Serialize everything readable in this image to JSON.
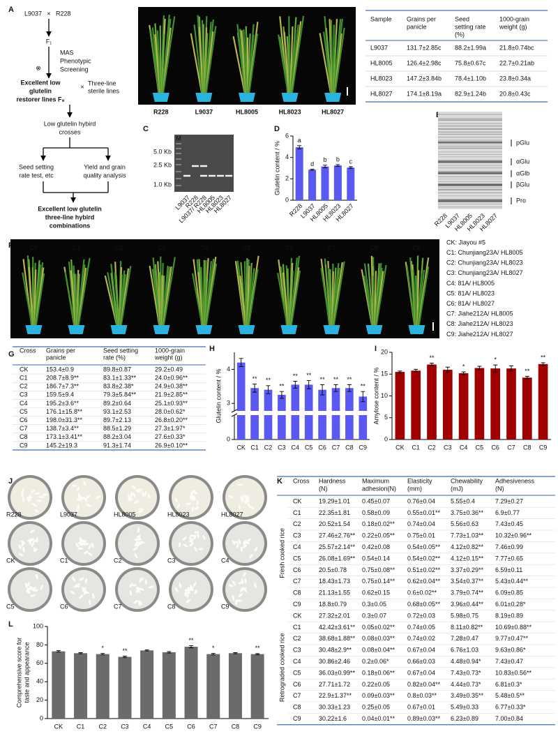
{
  "panel_labels": [
    "A",
    "B",
    "C",
    "D",
    "E",
    "F",
    "G",
    "H",
    "I",
    "J",
    "K",
    "L"
  ],
  "panel_a": {
    "parent_1": "L9037",
    "cross_symbol": "×",
    "parent_2": "R228",
    "f1": "F₁",
    "selection": [
      "MAS",
      "Phenotypic",
      "Screening"
    ],
    "selfing_symbol": "⊗",
    "restorer": [
      "Excellent low",
      "glutelin",
      "restorer lines F₉"
    ],
    "cross_symbol_2": "×",
    "sterile": [
      "Three-line",
      "sterile lines"
    ],
    "crosses": [
      "Low glutelin hybird",
      "crosses"
    ],
    "test": [
      "Seed setting",
      "rate test, etc"
    ],
    "analysis": [
      "Yield and grain",
      "quality analysis"
    ],
    "result": [
      "Excellent low glutelin",
      "three-line hybird",
      "combinations"
    ]
  },
  "panel_b": {
    "plants": [
      "R228",
      "L9037",
      "HL8005",
      "HL8023",
      "HL8027"
    ],
    "table": {
      "header": [
        [
          "Sample"
        ],
        [
          "Grains per",
          "panicle"
        ],
        [
          "Seed",
          "setting rate",
          "(%)"
        ],
        [
          "1000-grain",
          "weight (g)"
        ]
      ],
      "rows": [
        [
          "L9037",
          "131.7±2.85c",
          "88.2±1.99a",
          "21.8±0.74bc"
        ],
        [
          "HL8005",
          "126.4±2.98c",
          "75.8±0.67c",
          "22.7±0.21ab"
        ],
        [
          "HL8023",
          "147.2±3.84b",
          "78.4±1.10b",
          "23.8±0.34a"
        ],
        [
          "HL8027",
          "174.1±8.19a",
          "82.9±1.24b",
          "20.8±0.43c"
        ]
      ]
    }
  },
  "panel_c": {
    "marker": "M",
    "sizes": [
      "5.0 Kb",
      "2.5 Kb",
      "1.0 Kb"
    ],
    "lanes": [
      "L9037",
      "R228",
      "L9037/ R228",
      "HL8005",
      "HL8023",
      "HL8027"
    ]
  },
  "panel_e": {
    "bands": [
      "pGlu",
      "αGlu",
      "αGlb",
      "βGlu",
      "Pro"
    ],
    "lanes": [
      "R228",
      "L9037",
      "HL8005",
      "HL8023",
      "HL8027"
    ]
  },
  "panel_f": {
    "plants": [
      "CK",
      "C1",
      "C2",
      "C3",
      "C4",
      "C5",
      "C6",
      "C7",
      "C8",
      "C9"
    ],
    "key": [
      "CK: Jiayou #5",
      "C1: Chunjiang23A/ HL8005",
      "C2: Chunjiang23A/ HL8023",
      "C3: Chunjiang23A/ HL8027",
      "C4: 81A/ HL8005",
      "C5: 81A/ HL8023",
      "C6: 81A/ HL8027",
      "C7: Jiahe212A/ HL8005",
      "C8: Jiahe212A/ HL8023",
      "C9: Jiahe212A/ HL8027"
    ]
  },
  "panel_g": {
    "header": [
      [
        "Cross"
      ],
      [
        "Grains per",
        "panicle"
      ],
      [
        "Seed setting",
        "rate (%)"
      ],
      [
        "1000-grain",
        "weight (g)"
      ]
    ],
    "rows": [
      [
        "CK",
        "153.4±0.9",
        "89.8±0.87",
        "29.2±0.49"
      ],
      [
        "C1",
        "208.7±8.9**",
        "83.1±1.33**",
        "24.0±0.96**"
      ],
      [
        "C2",
        "186.7±7.3**",
        "83.8±2.38*",
        "24.9±0.38**"
      ],
      [
        "C3",
        "159.5±9.4",
        "79.3±5.84**",
        "21.9±2.85**"
      ],
      [
        "C4",
        "195.2±3.6**",
        "89.2±0.64",
        "25.1±0.93**"
      ],
      [
        "C5",
        "176.1±15.8**",
        "93.1±2.53",
        "28.0±0.62*"
      ],
      [
        "C6",
        "198.0±31.3**",
        "89.7±2.13",
        "26.8±0.20**"
      ],
      [
        "C7",
        "138.7±3.4**",
        "88.5±1.29",
        "27.3±1.97*"
      ],
      [
        "C8",
        "173.1±3.41**",
        "88.2±3.04",
        "27.6±0.33*"
      ],
      [
        "C9",
        "145.2±19.3",
        "91.3±1.74",
        "26.9±0.10**"
      ]
    ]
  },
  "panel_j": {
    "dishes": [
      "R228",
      "L9037",
      "HL8005",
      "HL8023",
      "HL8027",
      "CK",
      "C1",
      "C2",
      "C3",
      "C4",
      "C5",
      "C6",
      "C7",
      "C8",
      "C9"
    ]
  },
  "panel_k": {
    "header": [
      [
        "Cross"
      ],
      [
        "Hardness",
        "(N)"
      ],
      [
        "Maximum",
        "adhesion(N)"
      ],
      [
        "Elasticity",
        "(mm)"
      ],
      [
        "Chewability",
        "(mJ)"
      ],
      [
        "Adhesiveness",
        "(N)"
      ]
    ],
    "groups": [
      {
        "name": "Fresh cooked rice",
        "rows": [
          [
            "CK",
            "19.29±1.01",
            "0.45±0.07",
            "0.76±0.04",
            "5.55±0.4",
            "7.29±0.27"
          ],
          [
            "C1",
            "22.35±1.81",
            "0.58±0.09",
            "0.55±0.01**",
            "3.75±0.36**",
            "6.9±0.77"
          ],
          [
            "C2",
            "20.52±1.54",
            "0.18±0.02**",
            "0.74±0.04",
            "5.56±0.63",
            "7.43±0.45"
          ],
          [
            "C3",
            "27.46±2.76**",
            "0.22±0.05**",
            "0.75±0.01",
            "7.73±1.03**",
            "10.32±0.96**"
          ],
          [
            "C4",
            "25.57±2.14**",
            "0.42±0.08",
            "0.54±0.05**",
            "4.12±0.82**",
            "7.46±0.99"
          ],
          [
            "C5",
            "26.08±1.69**",
            "0.54±0.14",
            "0.54±0.02**",
            "4.12±0.15**",
            "7.77±0.65"
          ],
          [
            "C6",
            "20.5±0.78",
            "0.75±0.08**",
            "0.51±0.02**",
            "3.37±0.29**",
            "6.59±0.11"
          ],
          [
            "C7",
            "18.43±1.73",
            "0.75±0.14**",
            "0.62±0.04**",
            "3.54±0.37**",
            "5.43±0.44**"
          ],
          [
            "C8",
            "21.13±1.55",
            "0.62±0.15",
            "0.6±0.02**",
            "3.79±0.74**",
            "6.09±0.85"
          ],
          [
            "C9",
            "18.8±0.79",
            "0.3±0.05",
            "0.68±0.05**",
            "3.96±0.44**",
            "6.01±0.28*"
          ]
        ]
      },
      {
        "name": "Retrograded cooked rice",
        "rows": [
          [
            "CK",
            "27.32±2.01",
            "0.3±0.07",
            "0.72±0.03",
            "5.98±0.75",
            "8.19±0.89"
          ],
          [
            "C1",
            "42.42±3.61**",
            "0.05±0.02**",
            "0.74±0.05",
            "8.11±0.82**",
            "10.69±0.88**"
          ],
          [
            "C2",
            "38.68±1.88**",
            "0.08±0.03**",
            "0.74±0.02",
            "7.28±0.47",
            "9.77±0.47**"
          ],
          [
            "C3",
            "30.48±2.9**",
            "0.08±0.04**",
            "0.67±0.04",
            "6.76±1.03",
            "9.63±0.86*"
          ],
          [
            "C4",
            "30.86±2.46",
            "0.2±0.06*",
            "0.66±0.03",
            "4.48±0.94*",
            "7.43±0.47"
          ],
          [
            "C5",
            "36.03±0.99**",
            "0.18±0.06**",
            "0.67±0.04",
            "7.43±0.73*",
            "10.83±0.56**"
          ],
          [
            "C6",
            "27.71±1.72",
            "0.22±0.05",
            "0.82±0.04**",
            "4.44±0.73*",
            "6.81±0.3*"
          ],
          [
            "C7",
            "22.9±1.37**",
            "0.09±0.03**",
            "0.8±0.03**",
            "3.49±0.35**",
            "5.48±0.5**"
          ],
          [
            "C8",
            "30.33±1.23",
            "0.25±0.05",
            "0.67±0.01",
            "5.49±0.33",
            "6.77±0.33*"
          ],
          [
            "C9",
            "30.22±1.6",
            "0.04±0.01**",
            "0.89±0.03**",
            "6.23±0.89",
            "7.00±0.84"
          ]
        ]
      }
    ]
  },
  "chart_data": [
    {
      "type": "bar",
      "ylabel": "Glutelin content / %",
      "categories": [
        "R228",
        "L9037",
        "HL8005",
        "HL8023",
        "HL8027"
      ],
      "values": [
        4.95,
        2.85,
        3.15,
        3.25,
        3.05
      ],
      "errors": [
        0.15,
        0.05,
        0.12,
        0.08,
        0.08
      ],
      "annotations": [
        "a",
        "d",
        "b",
        "b",
        "c"
      ],
      "color": "#5a5af2",
      "ylim": [
        0,
        6
      ],
      "yticks": [
        0,
        2,
        4,
        6
      ]
    },
    {
      "type": "bar",
      "ylabel": "Glutelin content / %",
      "categories": [
        "CK",
        "C1",
        "C2",
        "C3",
        "C4",
        "C5",
        "C6",
        "C7",
        "C8",
        "C9"
      ],
      "values": [
        4.2,
        3.45,
        3.4,
        3.25,
        3.55,
        3.55,
        3.4,
        3.45,
        3.45,
        3.2
      ],
      "errors": [
        0.12,
        0.12,
        0.12,
        0.1,
        0.1,
        0.12,
        0.15,
        0.1,
        0.1,
        0.15
      ],
      "annotations": [
        null,
        "**",
        "**",
        "**",
        "**",
        "**",
        "**",
        "**",
        "**",
        "**"
      ],
      "color": "#5a5af2",
      "ylim": [
        0,
        4.5
      ],
      "ybreak": [
        1,
        2.8
      ],
      "yticks": [
        0,
        3,
        4
      ]
    },
    {
      "type": "bar",
      "ylabel": "Amylose content / %",
      "categories": [
        "CK",
        "C1",
        "C2",
        "C3",
        "C4",
        "C5",
        "C6",
        "C7",
        "C8",
        "C9"
      ],
      "values": [
        15.5,
        15.8,
        17.2,
        16.0,
        15.2,
        16.4,
        16.3,
        16.3,
        14.2,
        17.3
      ],
      "errors": [
        0.2,
        0.3,
        0.3,
        0.6,
        0.3,
        0.4,
        0.8,
        0.6,
        0.3,
        0.3
      ],
      "annotations": [
        null,
        null,
        "**",
        null,
        "*",
        null,
        "*",
        null,
        "**",
        "**"
      ],
      "color": "#a00000",
      "ylim": [
        0,
        20
      ],
      "yticks": [
        0,
        5,
        10,
        15,
        20
      ]
    },
    {
      "type": "bar",
      "ylabel": [
        "Comprehensive score for",
        "taste and appearance"
      ],
      "categories": [
        "CK",
        "C1",
        "C2",
        "C3",
        "C4",
        "C5",
        "C6",
        "C7",
        "C8",
        "C9"
      ],
      "values": [
        73,
        71,
        70,
        67,
        74,
        72,
        78,
        70,
        71,
        70
      ],
      "errors": [
        0.8,
        0.6,
        0.8,
        0.8,
        0.6,
        0.8,
        1.2,
        0.8,
        0.6,
        0.6
      ],
      "annotations": [
        null,
        null,
        "*",
        "**",
        null,
        null,
        "**",
        "*",
        null,
        "**"
      ],
      "color": "#6b6b6b",
      "ylim": [
        0,
        100
      ],
      "yticks": [
        0,
        20,
        40,
        60,
        80,
        100
      ]
    }
  ]
}
